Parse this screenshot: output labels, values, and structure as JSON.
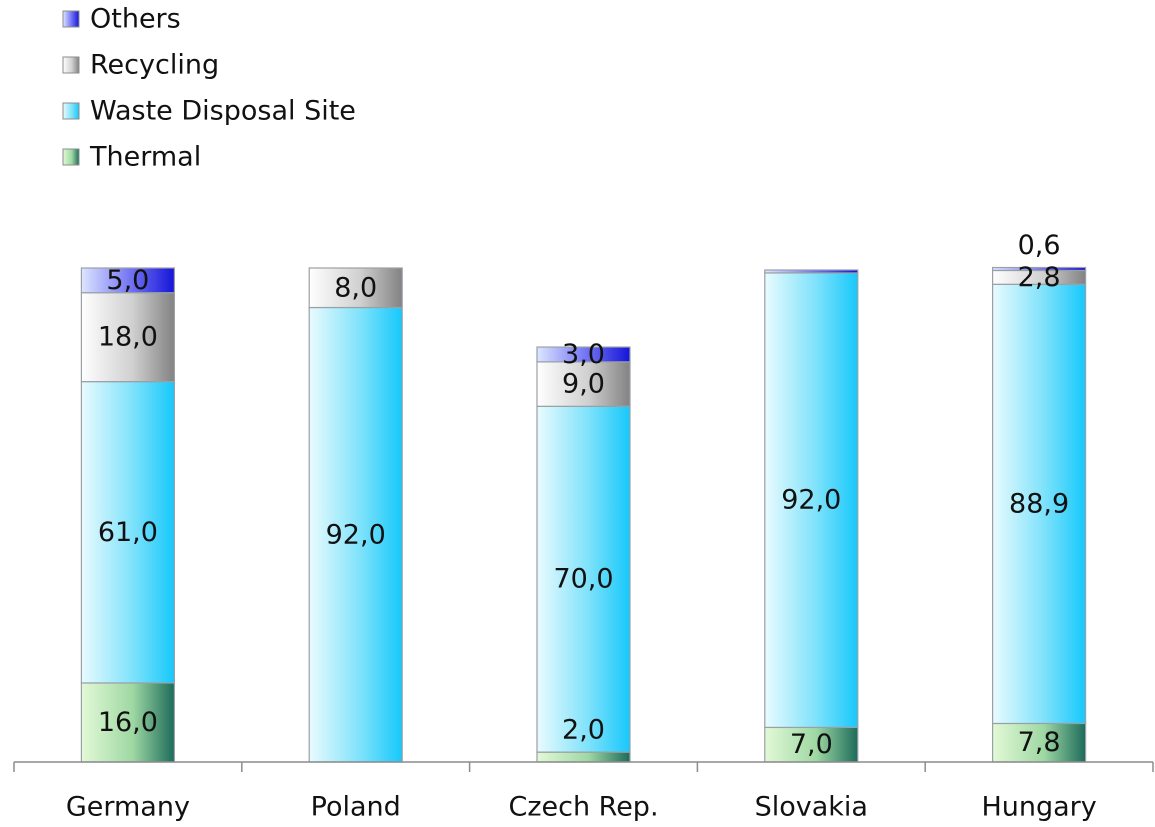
{
  "chart_data": {
    "type": "bar",
    "stacked": true,
    "categories": [
      "Germany",
      "Poland",
      "Czech Rep.",
      "Slovakia",
      "Hungary"
    ],
    "series": [
      {
        "name": "Thermal",
        "values": [
          16.0,
          0,
          2.0,
          7.0,
          7.8
        ],
        "labels": [
          "16,0",
          "",
          "2,0",
          "7,0",
          "7,8"
        ]
      },
      {
        "name": "Waste Disposal Site",
        "values": [
          61.0,
          92.0,
          70.0,
          92.0,
          88.9
        ],
        "labels": [
          "61,0",
          "92,0",
          "70,0",
          "92,0",
          "88,9"
        ]
      },
      {
        "name": "Recycling",
        "values": [
          18.0,
          8.0,
          9.0,
          0,
          2.8
        ],
        "labels": [
          "18,0",
          "8,0",
          "9,0",
          "",
          "2,8"
        ]
      },
      {
        "name": "Others",
        "values": [
          5.0,
          0,
          3.0,
          0.6,
          0.6
        ],
        "labels": [
          "5,0",
          "",
          "3,0",
          "",
          "0,6"
        ]
      }
    ],
    "legend_order": [
      "Others",
      "Recycling",
      "Waste Disposal Site",
      "Thermal"
    ],
    "legend_position": "top-left",
    "ylim": [
      0,
      100
    ],
    "grid": false,
    "colors": {
      "Thermal": [
        "#e3f9d7",
        "#9fd8a3",
        "#1c6b5a"
      ],
      "Waste Disposal Site": [
        "#e9fbfe",
        "#7fe2fb",
        "#16c8fb"
      ],
      "Recycling": [
        "#ffffff",
        "#d0d0d0",
        "#828282"
      ],
      "Others": [
        "#dce6ff",
        "#6f6ff2",
        "#1515d8"
      ]
    }
  }
}
